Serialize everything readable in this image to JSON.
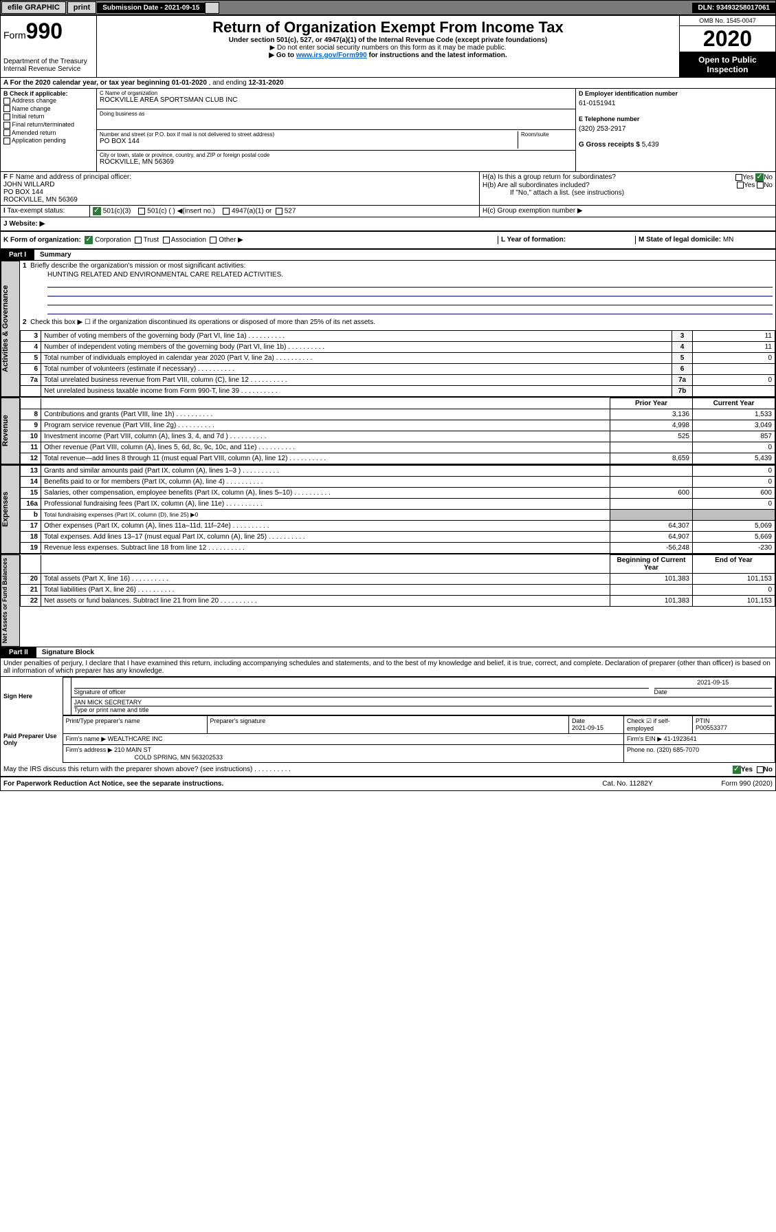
{
  "topbar": {
    "efile": "efile GRAPHIC",
    "print": "print",
    "sub_label": "Submission Date - 2021-09-15",
    "dln": "DLN: 93493258017061"
  },
  "header": {
    "form_label": "Form",
    "form_num": "990",
    "dept": "Department of the Treasury",
    "irs": "Internal Revenue Service",
    "title": "Return of Organization Exempt From Income Tax",
    "sub1": "Under section 501(c), 527, or 4947(a)(1) of the Internal Revenue Code (except private foundations)",
    "sub2": "▶ Do not enter social security numbers on this form as it may be made public.",
    "sub3a": "▶ Go to ",
    "sub3_link": "www.irs.gov/Form990",
    "sub3b": " for instructions and the latest information.",
    "omb": "OMB No. 1545-0047",
    "year": "2020",
    "open": "Open to Public Inspection"
  },
  "period": {
    "text_a": "A For the 2020 calendar year, or tax year beginning ",
    "begin": "01-01-2020",
    "mid": " , and ending ",
    "end": "12-31-2020"
  },
  "colB": {
    "title": "B Check if applicable:",
    "items": [
      "Address change",
      "Name change",
      "Initial return",
      "Final return/terminated",
      "Amended return",
      "Application pending"
    ]
  },
  "colC": {
    "name_lbl": "C Name of organization",
    "name": "ROCKVILLE AREA SPORTSMAN CLUB INC",
    "dba_lbl": "Doing business as",
    "dba": "",
    "addr_lbl": "Number and street (or P.O. box if mail is not delivered to street address)",
    "room_lbl": "Room/suite",
    "addr": "PO BOX 144",
    "city_lbl": "City or town, state or province, country, and ZIP or foreign postal code",
    "city": "ROCKVILLE, MN  56369"
  },
  "colD": {
    "ein_lbl": "D Employer identification number",
    "ein": "61-0151941",
    "tel_lbl": "E Telephone number",
    "tel": "(320) 253-2917",
    "gross_lbl": "G Gross receipts $ ",
    "gross": "5,439"
  },
  "officer": {
    "lbl": "F Name and address of principal officer:",
    "name": "JOHN WILLARD",
    "addr1": "PO BOX 144",
    "addr2": "ROCKVILLE, MN  56369"
  },
  "sectionH": {
    "ha": "H(a)  Is this a group return for subordinates?",
    "hb": "H(b)  Are all subordinates included?",
    "hb_note": "If \"No,\" attach a list. (see instructions)",
    "hc": "H(c)  Group exemption number ▶",
    "yes": "Yes",
    "no": "No"
  },
  "status": {
    "lbl": "Tax-exempt status:",
    "opt1": "501(c)(3)",
    "opt2": "501(c) (  ) ◀(insert no.)",
    "opt3": "4947(a)(1) or",
    "opt4": "527"
  },
  "website": {
    "lbl": "J   Website: ▶"
  },
  "rowK": {
    "lbl": "K Form of organization:",
    "corp": "Corporation",
    "trust": "Trust",
    "assoc": "Association",
    "other": "Other ▶",
    "L": "L Year of formation:",
    "M": "M State of legal domicile: ",
    "M_val": "MN"
  },
  "part1": {
    "header": "Part I",
    "title": "Summary",
    "line1_lbl": "Briefly describe the organization's mission or most significant activities:",
    "mission": "HUNTING RELATED AND ENVIRONMENTAL CARE RELATED ACTIVITIES.",
    "line2": "Check this box ▶ ☐  if the organization discontinued its operations or disposed of more than 25% of its net assets.",
    "sections": {
      "gov": "Activities & Governance",
      "rev": "Revenue",
      "exp": "Expenses",
      "net": "Net Assets or Fund Balances"
    },
    "gov_rows": [
      {
        "n": "3",
        "lbl": "Number of voting members of the governing body (Part VI, line 1a)",
        "ln": "3",
        "v": "11"
      },
      {
        "n": "4",
        "lbl": "Number of independent voting members of the governing body (Part VI, line 1b)",
        "ln": "4",
        "v": "11"
      },
      {
        "n": "5",
        "lbl": "Total number of individuals employed in calendar year 2020 (Part V, line 2a)",
        "ln": "5",
        "v": "0"
      },
      {
        "n": "6",
        "lbl": "Total number of volunteers (estimate if necessary)",
        "ln": "6",
        "v": ""
      },
      {
        "n": "7a",
        "lbl": "Total unrelated business revenue from Part VIII, column (C), line 12",
        "ln": "7a",
        "v": "0"
      },
      {
        "n": "",
        "lbl": "Net unrelated business taxable income from Form 990-T, line 39",
        "ln": "7b",
        "v": ""
      }
    ],
    "hdr_prior": "Prior Year",
    "hdr_current": "Current Year",
    "rev_rows": [
      {
        "n": "8",
        "lbl": "Contributions and grants (Part VIII, line 1h)",
        "p": "3,136",
        "c": "1,533"
      },
      {
        "n": "9",
        "lbl": "Program service revenue (Part VIII, line 2g)",
        "p": "4,998",
        "c": "3,049"
      },
      {
        "n": "10",
        "lbl": "Investment income (Part VIII, column (A), lines 3, 4, and 7d )",
        "p": "525",
        "c": "857"
      },
      {
        "n": "11",
        "lbl": "Other revenue (Part VIII, column (A), lines 5, 6d, 8c, 9c, 10c, and 11e)",
        "p": "",
        "c": "0"
      },
      {
        "n": "12",
        "lbl": "Total revenue—add lines 8 through 11 (must equal Part VIII, column (A), line 12)",
        "p": "8,659",
        "c": "5,439"
      }
    ],
    "exp_rows": [
      {
        "n": "13",
        "lbl": "Grants and similar amounts paid (Part IX, column (A), lines 1–3 )",
        "p": "",
        "c": "0"
      },
      {
        "n": "14",
        "lbl": "Benefits paid to or for members (Part IX, column (A), line 4)",
        "p": "",
        "c": "0"
      },
      {
        "n": "15",
        "lbl": "Salaries, other compensation, employee benefits (Part IX, column (A), lines 5–10)",
        "p": "600",
        "c": "600"
      },
      {
        "n": "16a",
        "lbl": "Professional fundraising fees (Part IX, column (A), line 11e)",
        "p": "",
        "c": "0"
      },
      {
        "n": "b",
        "lbl": "Total fundraising expenses (Part IX, column (D), line 25) ▶0",
        "p": "SHADE",
        "c": "SHADE"
      },
      {
        "n": "17",
        "lbl": "Other expenses (Part IX, column (A), lines 11a–11d, 11f–24e)",
        "p": "64,307",
        "c": "5,069"
      },
      {
        "n": "18",
        "lbl": "Total expenses. Add lines 13–17 (must equal Part IX, column (A), line 25)",
        "p": "64,907",
        "c": "5,669"
      },
      {
        "n": "19",
        "lbl": "Revenue less expenses. Subtract line 18 from line 12",
        "p": "-56,248",
        "c": "-230"
      }
    ],
    "hdr_begin": "Beginning of Current Year",
    "hdr_end": "End of Year",
    "net_rows": [
      {
        "n": "20",
        "lbl": "Total assets (Part X, line 16)",
        "p": "101,383",
        "c": "101,153"
      },
      {
        "n": "21",
        "lbl": "Total liabilities (Part X, line 26)",
        "p": "",
        "c": "0"
      },
      {
        "n": "22",
        "lbl": "Net assets or fund balances. Subtract line 21 from line 20",
        "p": "101,383",
        "c": "101,153"
      }
    ]
  },
  "part2": {
    "header": "Part II",
    "title": "Signature Block",
    "decl": "Under penalties of perjury, I declare that I have examined this return, including accompanying schedules and statements, and to the best of my knowledge and belief, it is true, correct, and complete. Declaration of preparer (other than officer) is based on all information of which preparer has any knowledge.",
    "sign_here": "Sign Here",
    "sig_officer": "Signature of officer",
    "sig_date": "2021-09-15",
    "date_lbl": "Date",
    "officer_name": "JAN MICK SECRETARY",
    "type_name": "Type or print name and title",
    "paid": "Paid Preparer Use Only",
    "prep_name_lbl": "Print/Type preparer's name",
    "prep_sig_lbl": "Preparer's signature",
    "prep_date_lbl": "Date",
    "prep_date": "2021-09-15",
    "check_lbl": "Check ☑ if self-employed",
    "ptin_lbl": "PTIN",
    "ptin": "P00553377",
    "firm_name_lbl": "Firm's name    ▶ ",
    "firm_name": "WEALTHCARE INC",
    "firm_ein_lbl": "Firm's EIN ▶ ",
    "firm_ein": "41-1923641",
    "firm_addr_lbl": "Firm's address ▶ ",
    "firm_addr1": "210 MAIN ST",
    "firm_addr2": "COLD SPRING, MN  563202533",
    "phone_lbl": "Phone no. ",
    "phone": "(320) 685-7070",
    "discuss": "May the IRS discuss this return with the preparer shown above? (see instructions)",
    "yes": "Yes",
    "no": "No"
  },
  "footer": {
    "left": "For Paperwork Reduction Act Notice, see the separate instructions.",
    "mid": "Cat. No. 11282Y",
    "right": "Form 990 (2020)"
  },
  "colors": {
    "green": "#2a7a3a",
    "link": "#0066cc",
    "shade": "#bfbfbf",
    "blue_line": "#00008b"
  }
}
